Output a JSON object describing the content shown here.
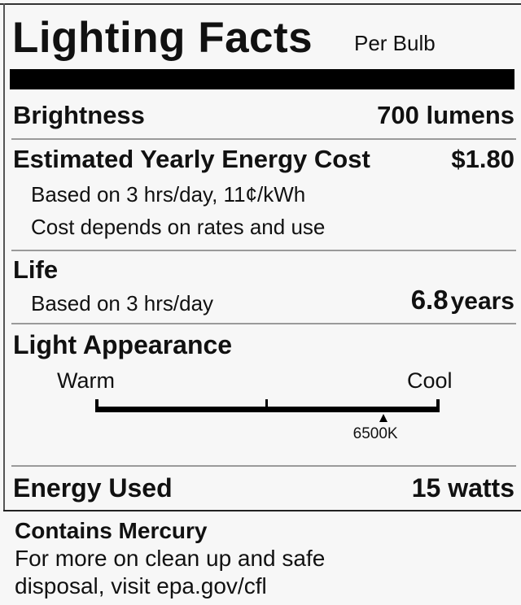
{
  "title": "Lighting Facts",
  "subtitle": "Per Bulb",
  "brightness": {
    "label": "Brightness",
    "value": "700 lumens"
  },
  "energy_cost": {
    "label": "Estimated Yearly Energy Cost",
    "value": "$1.80",
    "note1": "Based on 3 hrs/day, 11¢/kWh",
    "note2": "Cost depends on rates and use"
  },
  "life": {
    "label": "Life",
    "note": "Based on 3 hrs/day",
    "value_number": "6.8",
    "value_unit": "years"
  },
  "light_appearance": {
    "label": "Light Appearance",
    "warm_label": "Warm",
    "cool_label": "Cool",
    "marker_label": "6500K",
    "marker_fraction": 0.836
  },
  "energy_used": {
    "label": "Energy Used",
    "value": "15 watts"
  },
  "mercury": {
    "heading": "Contains Mercury",
    "line1": "For more on clean up and safe",
    "line2": "disposal, visit epa.gov/cfl"
  }
}
